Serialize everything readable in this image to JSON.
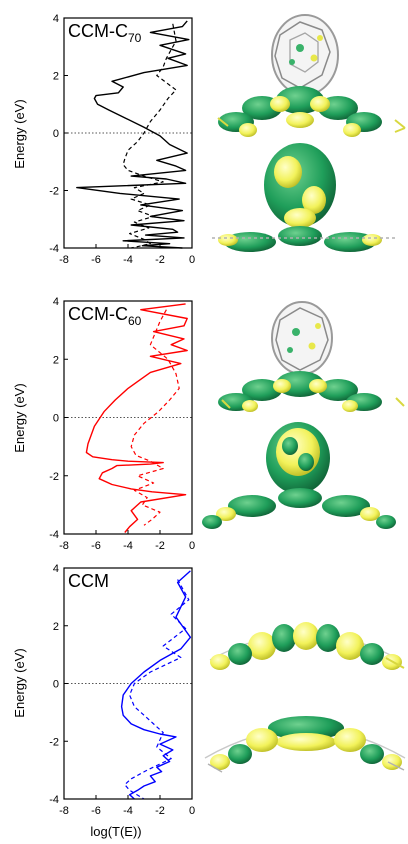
{
  "figure": {
    "xlabel": "log(T(E))",
    "ylabel": "Energy (eV)"
  },
  "chart_data": [
    {
      "type": "line",
      "title_main": "CCM-C",
      "title_sub": "70",
      "color": "#000000",
      "xlim": [
        -8,
        0
      ],
      "ylim": [
        -4,
        4
      ],
      "xticks": [
        -8,
        -6,
        -4,
        -2,
        0
      ],
      "yticks": [
        -4,
        -2,
        0,
        2,
        4
      ],
      "fermi_level": 0,
      "series": [
        {
          "style": "solid",
          "x": [
            -0.3,
            -0.6,
            -2.6,
            -0.2,
            -2.0,
            -0.4,
            -1.5,
            -0.3,
            -3.0,
            -5.0,
            -4.3,
            -4.6,
            -6.0,
            -6.1,
            -5.9,
            -5.2,
            -4.1,
            -3.0,
            -2.0,
            -1.4,
            -0.3,
            -2.2,
            -1.0,
            -0.4,
            -3.8,
            -1.6,
            -0.4,
            -7.2,
            -4.5,
            -0.8,
            -3.2,
            -0.6,
            -2.6,
            -0.5,
            -3.8,
            -1.2,
            -0.9,
            -2.9,
            -0.5,
            -4.3,
            -1.4,
            -3.1,
            -0.6
          ],
          "y": [
            3.9,
            3.7,
            3.5,
            3.25,
            3.05,
            2.75,
            2.6,
            2.35,
            2.1,
            1.8,
            1.6,
            1.4,
            1.3,
            1.2,
            1.0,
            0.8,
            0.5,
            0.2,
            -0.1,
            -0.4,
            -0.7,
            -0.95,
            -1.15,
            -1.3,
            -1.5,
            -1.6,
            -1.75,
            -1.9,
            -2.1,
            -2.3,
            -2.5,
            -2.7,
            -2.9,
            -3.05,
            -3.2,
            -3.35,
            -3.45,
            -3.55,
            -3.65,
            -3.75,
            -3.85,
            -3.92,
            -4.0
          ]
        },
        {
          "style": "dashed",
          "x": [
            -1.2,
            -1.0,
            -1.6,
            -1.8,
            -2.2,
            -1.0,
            -1.5,
            -2.0,
            -2.6,
            -3.0,
            -3.4,
            -4.0,
            -4.2,
            -4.3,
            -4.0,
            -3.0,
            -1.8,
            -3.6,
            -3.0,
            -3.8,
            -2.6,
            -3.4,
            -2.4,
            -3.6,
            -2.7,
            -3.9,
            -3.0,
            -2.6,
            -3.8
          ],
          "y": [
            3.8,
            3.2,
            2.6,
            2.3,
            2.0,
            1.5,
            1.2,
            0.8,
            0.4,
            0.0,
            -0.3,
            -0.6,
            -0.9,
            -1.1,
            -1.3,
            -1.5,
            -1.7,
            -1.9,
            -2.1,
            -2.3,
            -2.5,
            -2.7,
            -2.9,
            -3.1,
            -3.3,
            -3.5,
            -3.7,
            -3.85,
            -4.0
          ]
        }
      ]
    },
    {
      "type": "line",
      "title_main": "CCM-C",
      "title_sub": "60",
      "color": "#ff0000",
      "xlim": [
        -8,
        0
      ],
      "ylim": [
        -4,
        4
      ],
      "xticks": [
        -8,
        -6,
        -4,
        -2,
        0
      ],
      "yticks": [
        -4,
        -2,
        0,
        2,
        4
      ],
      "fermi_level": 0,
      "series": [
        {
          "style": "solid",
          "x": [
            -0.4,
            -3.2,
            -0.3,
            -0.5,
            -2.4,
            -0.5,
            -1.3,
            -0.3,
            -2.6,
            -0.7,
            -2.6,
            -4.0,
            -4.8,
            -5.5,
            -6.1,
            -6.5,
            -6.6,
            -6.2,
            -5.0,
            -4.0,
            -1.8,
            -2.6,
            -4.7,
            -5.0,
            -5.6,
            -5.8,
            -5.0,
            -3.8,
            -2.5,
            -1.5,
            -0.4,
            -3.2,
            -3.8,
            -3.4,
            -3.9,
            -4.2
          ],
          "y": [
            3.9,
            3.7,
            3.4,
            3.15,
            2.95,
            2.7,
            2.5,
            2.3,
            2.1,
            1.85,
            1.55,
            1.0,
            0.6,
            0.2,
            -0.3,
            -0.9,
            -1.2,
            -1.35,
            -1.45,
            -1.5,
            -1.55,
            -1.6,
            -1.65,
            -1.75,
            -1.9,
            -2.1,
            -2.3,
            -2.45,
            -2.55,
            -2.6,
            -2.65,
            -2.9,
            -3.2,
            -3.5,
            -3.75,
            -3.95
          ]
        },
        {
          "style": "dashed",
          "x": [
            -1.6,
            -2.0,
            -2.3,
            -2.6,
            -1.5,
            -1.0,
            -0.8,
            -1.4,
            -2.1,
            -3.0,
            -3.6,
            -3.8,
            -3.5,
            -2.6,
            -1.8,
            -3.4,
            -2.4,
            -3.6,
            -2.8,
            -3.1,
            -2.0,
            -2.5,
            -3.0
          ],
          "y": [
            3.7,
            3.3,
            2.9,
            2.5,
            2.0,
            1.5,
            1.0,
            0.6,
            0.2,
            -0.2,
            -0.6,
            -1.0,
            -1.3,
            -1.5,
            -1.75,
            -2.0,
            -2.25,
            -2.5,
            -2.75,
            -3.0,
            -3.25,
            -3.5,
            -3.7
          ]
        }
      ]
    },
    {
      "type": "line",
      "title_main": "CCM",
      "title_sub": "",
      "color": "#0000ff",
      "xlim": [
        -8,
        0
      ],
      "ylim": [
        -4,
        4
      ],
      "xticks": [
        -8,
        -6,
        -4,
        -2,
        0
      ],
      "yticks": [
        -4,
        -2,
        0,
        2,
        4
      ],
      "fermi_level": 0,
      "series": [
        {
          "style": "solid",
          "x": [
            -0.1,
            -0.9,
            -0.4,
            -1.0,
            -0.1,
            -0.7,
            -2.0,
            -3.0,
            -3.8,
            -4.3,
            -4.4,
            -4.3,
            -3.8,
            -3.0,
            -2.0,
            -1.0,
            -2.0,
            -1.2,
            -1.8,
            -1.4,
            -2.2,
            -1.9,
            -2.6,
            -2.3,
            -3.0,
            -3.4,
            -3.9,
            -3.6
          ],
          "y": [
            3.9,
            3.5,
            3.0,
            2.3,
            1.6,
            1.2,
            0.8,
            0.4,
            0.0,
            -0.4,
            -0.8,
            -1.1,
            -1.4,
            -1.6,
            -1.75,
            -1.85,
            -2.1,
            -2.3,
            -2.5,
            -2.7,
            -2.9,
            -3.05,
            -3.2,
            -3.4,
            -3.55,
            -3.7,
            -3.85,
            -4.0
          ]
        },
        {
          "style": "dashed",
          "x": [
            -0.9,
            -0.2,
            -1.3,
            -0.4,
            -1.8,
            -0.7,
            -2.6,
            -3.6,
            -3.9,
            -3.6,
            -2.8,
            -1.8,
            -2.2,
            -1.3,
            -2.8,
            -3.8,
            -4.2,
            -3.9,
            -3.0
          ],
          "y": [
            3.6,
            2.9,
            2.4,
            1.9,
            1.3,
            0.9,
            0.4,
            0.0,
            -0.4,
            -0.8,
            -1.2,
            -1.7,
            -2.2,
            -2.6,
            -3.0,
            -3.3,
            -3.5,
            -3.7,
            -4.0
          ]
        }
      ]
    }
  ],
  "images": [
    {
      "name": "ccm-c70-orbital-renders",
      "colors": [
        "#1f9e5a",
        "#f2f25a",
        "#b0b0b0"
      ]
    },
    {
      "name": "ccm-c60-orbital-renders",
      "colors": [
        "#1f9e5a",
        "#f2f25a",
        "#b0b0b0"
      ]
    },
    {
      "name": "ccm-orbital-renders",
      "colors": [
        "#1f9e5a",
        "#f2f25a",
        "#b0b0b0"
      ]
    }
  ]
}
